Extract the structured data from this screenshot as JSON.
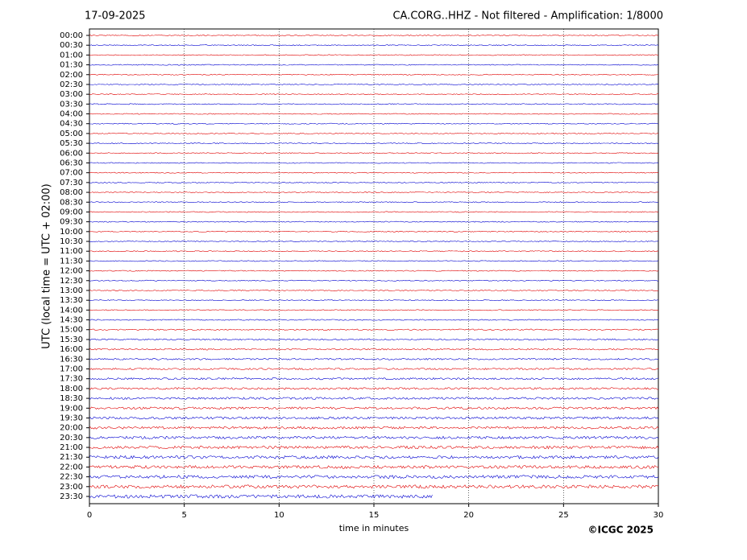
{
  "chart_data": {
    "type": "helicorder",
    "date": "17-09-2025",
    "title": "CA.CORG..HHZ - Not filtered - Amplification: 1/8000",
    "ylabel": "UTC (local time = UTC + 02:00)",
    "xlabel": "time in minutes",
    "credit": "©ICGC 2025",
    "categories": [
      "00:00",
      "00:30",
      "01:00",
      "01:30",
      "02:00",
      "02:30",
      "03:00",
      "03:30",
      "04:00",
      "04:30",
      "05:00",
      "05:30",
      "06:00",
      "06:30",
      "07:00",
      "07:30",
      "08:00",
      "08:30",
      "09:00",
      "09:30",
      "10:00",
      "10:30",
      "11:00",
      "11:30",
      "12:00",
      "12:30",
      "13:00",
      "13:30",
      "14:00",
      "14:30",
      "15:00",
      "15:30",
      "16:00",
      "16:30",
      "17:00",
      "17:30",
      "18:00",
      "18:30",
      "19:00",
      "19:30",
      "20:00",
      "20:30",
      "21:00",
      "21:30",
      "22:00",
      "22:30",
      "23:00",
      "23:30"
    ],
    "values": [
      30,
      30,
      30,
      30,
      30,
      30,
      30,
      30,
      30,
      30,
      30,
      30,
      30,
      30,
      30,
      30,
      30,
      30,
      30,
      30,
      30,
      30,
      30,
      30,
      30,
      30,
      30,
      30,
      30,
      30,
      30,
      30,
      30,
      30,
      30,
      30,
      30,
      30,
      30,
      30,
      30,
      30,
      30,
      30,
      30,
      30,
      30,
      18.1
    ],
    "colors": [
      "#e00000",
      "#0000d0"
    ],
    "xlim": [
      0,
      30
    ],
    "xticks": [
      0,
      5,
      10,
      15,
      20,
      25,
      30
    ],
    "grid": true
  }
}
